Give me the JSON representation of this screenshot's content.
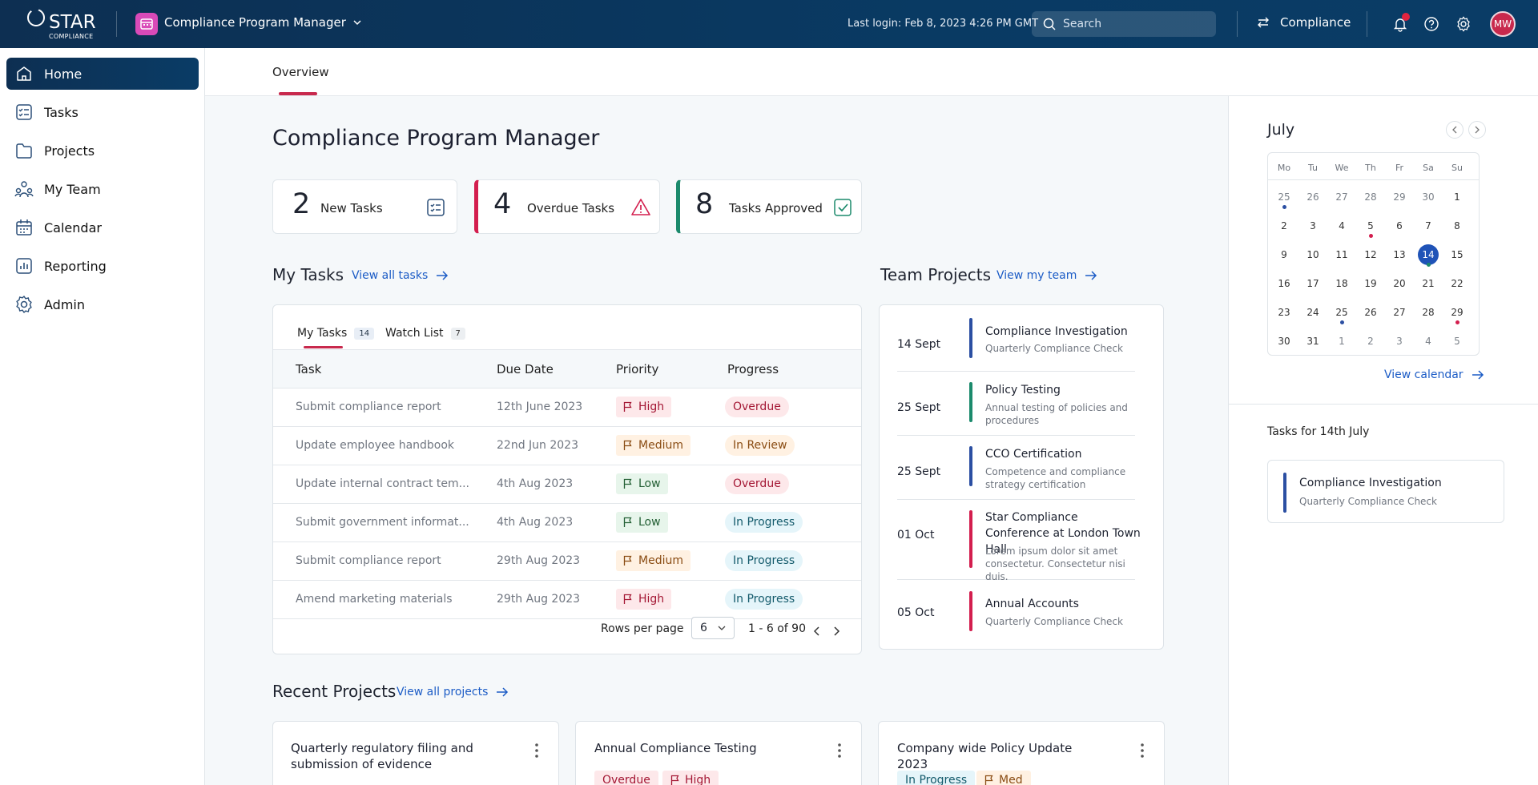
{
  "header": {
    "logo_text": "STAR",
    "logo_sub": "COMPLIANCE",
    "app_title": "Compliance Program Manager",
    "last_login": "Last login: Feb 8, 2023 4:26 PM GMT",
    "search_placeholder": "Search",
    "module_label": "Compliance",
    "avatar_initials": "MW"
  },
  "sidebar": {
    "items": [
      {
        "label": "Home",
        "icon": "home-icon",
        "active": true
      },
      {
        "label": "Tasks",
        "icon": "tasks-icon"
      },
      {
        "label": "Projects",
        "icon": "folder-icon"
      },
      {
        "label": "My Team",
        "icon": "team-icon"
      },
      {
        "label": "Calendar",
        "icon": "calendar-icon"
      },
      {
        "label": "Reporting",
        "icon": "reporting-icon"
      },
      {
        "label": "Admin",
        "icon": "gear-icon"
      }
    ]
  },
  "page": {
    "tab": "Overview",
    "title": "Compliance Program Manager"
  },
  "stats": [
    {
      "count": "2",
      "label": "New Tasks"
    },
    {
      "count": "4",
      "label": "Overdue Tasks"
    },
    {
      "count": "8",
      "label": "Tasks Approved"
    }
  ],
  "my_tasks": {
    "title": "My Tasks",
    "view_all": "View all tasks",
    "tabs": [
      {
        "label": "My Tasks",
        "count": "14"
      },
      {
        "label": "Watch List",
        "count": "7"
      }
    ],
    "columns": [
      "Task",
      "Due Date",
      "Priority",
      "Progress"
    ],
    "rows": [
      {
        "task": "Submit compliance report",
        "due": "12th June 2023",
        "priority": "High",
        "progress": "Overdue"
      },
      {
        "task": "Update employee handbook",
        "due": "22nd Jun 2023",
        "priority": "Medium",
        "progress": "In Review"
      },
      {
        "task": "Update internal contract tem...",
        "due": "4th Aug 2023",
        "priority": "Low",
        "progress": "Overdue"
      },
      {
        "task": "Submit government informat...",
        "due": "4th Aug 2023",
        "priority": "Low",
        "progress": "In Progress"
      },
      {
        "task": "Submit compliance report",
        "due": "29th Aug 2023",
        "priority": "Medium",
        "progress": "In Progress"
      },
      {
        "task": "Amend marketing materials",
        "due": "29th Aug 2023",
        "priority": "High",
        "progress": "In Progress"
      }
    ],
    "rows_per_page_label": "Rows per page",
    "rows_per_page": "6",
    "range": "1 - 6 of 90"
  },
  "team_projects": {
    "title": "Team Projects",
    "view_link": "View my team",
    "items": [
      {
        "date": "14 Sept",
        "title": "Compliance Investigation",
        "subtitle": "Quarterly Compliance Check",
        "color": "#2b4fa2"
      },
      {
        "date": "25 Sept",
        "title": "Policy Testing",
        "subtitle": "Annual testing of policies and procedures",
        "color": "#1b8a6c"
      },
      {
        "date": "25 Sept",
        "title": "CCO Certification",
        "subtitle": "Competence and compliance strategy certification",
        "color": "#2b4fa2"
      },
      {
        "date": "01 Oct",
        "title": "Star Compliance Conference at London Town Hall",
        "subtitle": "Lorem ipsum dolor sit amet consectetur. Consectetur nisi duis.",
        "color": "#d31e4e"
      },
      {
        "date": "05 Oct",
        "title": "Annual Accounts",
        "subtitle": "Quarterly Compliance Check",
        "color": "#d31e4e"
      }
    ]
  },
  "calendar": {
    "month": "July",
    "weekdays": [
      "Mo",
      "Tu",
      "We",
      "Th",
      "Fr",
      "Sa",
      "Su"
    ],
    "weeks": [
      [
        "25",
        "26",
        "27",
        "28",
        "29",
        "30",
        "1"
      ],
      [
        "2",
        "3",
        "4",
        "5",
        "6",
        "7",
        "8"
      ],
      [
        "9",
        "10",
        "11",
        "12",
        "13",
        "14",
        "15"
      ],
      [
        "16",
        "17",
        "18",
        "19",
        "20",
        "21",
        "22"
      ],
      [
        "23",
        "24",
        "25",
        "26",
        "27",
        "28",
        "29"
      ],
      [
        "30",
        "31",
        "1",
        "2",
        "3",
        "4",
        "5"
      ]
    ],
    "selected_day": "14",
    "view_link": "View calendar",
    "tasks_for": "Tasks for 14th July",
    "task_title": "Compliance Investigation",
    "task_subtitle": "Quarterly Compliance Check"
  },
  "recent_projects": {
    "title": "Recent Projects",
    "view_link": "View all projects",
    "items": [
      {
        "title": "Quarterly regulatory filing and submission of evidence",
        "tags": []
      },
      {
        "title": "Annual Compliance Testing",
        "tags": [
          {
            "label": "Overdue",
            "type": "overdue"
          },
          {
            "label": "High",
            "type": "high"
          }
        ]
      },
      {
        "title": "Company wide Policy Update 2023",
        "tags": [
          {
            "label": "In Progress",
            "type": "progress"
          },
          {
            "label": "Med",
            "type": "medium"
          }
        ]
      }
    ]
  },
  "colors": {
    "primary": "#0a3c66",
    "accent": "#c8294d",
    "link": "#1c5cc6",
    "overdue": "#d31e4e",
    "approved": "#1b8a6c"
  }
}
